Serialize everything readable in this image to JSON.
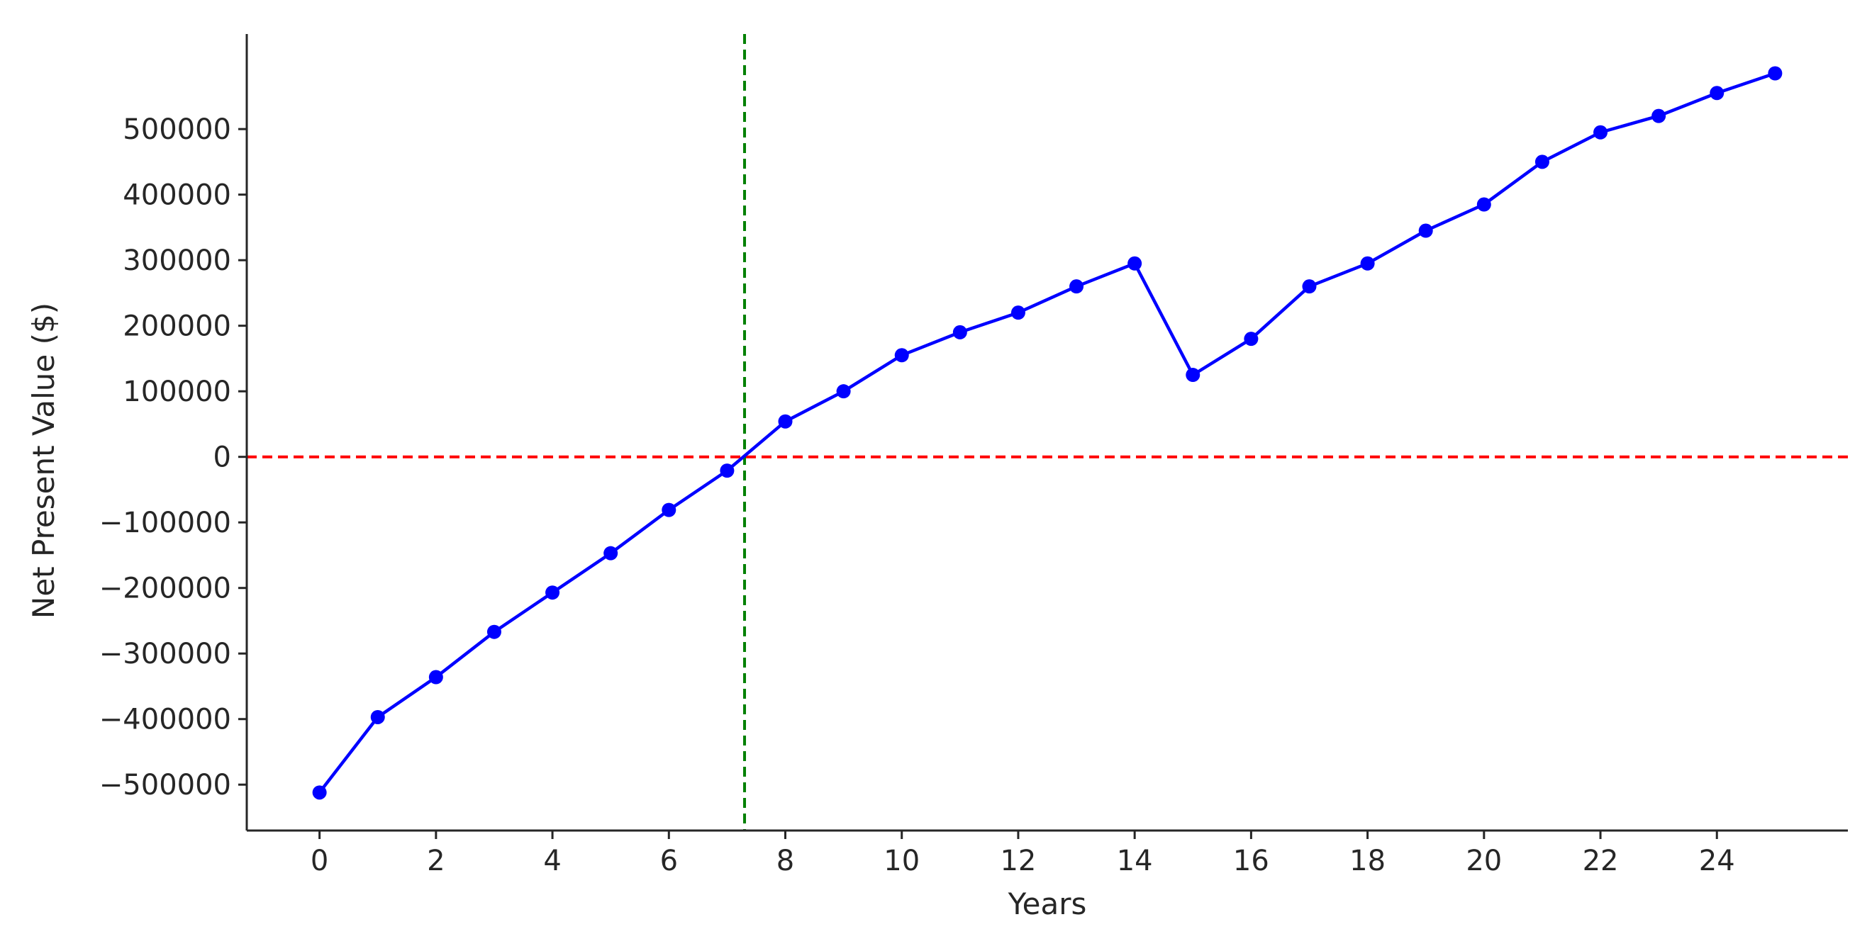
{
  "chart_data": {
    "type": "line",
    "title": "",
    "xlabel": "Years",
    "ylabel": "Net Present Value ($)",
    "xlim": [
      -1.25,
      26.25
    ],
    "ylim": [
      -570000,
      645000
    ],
    "x_ticks": [
      0,
      2,
      4,
      6,
      8,
      10,
      12,
      14,
      16,
      18,
      20,
      22,
      24
    ],
    "y_ticks": [
      -500000,
      -400000,
      -300000,
      -200000,
      -100000,
      0,
      100000,
      200000,
      300000,
      400000,
      500000
    ],
    "x_tick_labels": [
      "0",
      "2",
      "4",
      "6",
      "8",
      "10",
      "12",
      "14",
      "16",
      "18",
      "20",
      "22",
      "24"
    ],
    "y_tick_labels": [
      "−500000",
      "−400000",
      "−300000",
      "−200000",
      "−100000",
      "0",
      "100000",
      "200000",
      "300000",
      "400000",
      "500000"
    ],
    "grid": false,
    "legend": "none",
    "series": [
      {
        "x": [
          0,
          1,
          2,
          3,
          4,
          5,
          6,
          7,
          8,
          9,
          10,
          11,
          12,
          13,
          14,
          15,
          16,
          17,
          18,
          19,
          20,
          21,
          22,
          23,
          24,
          25
        ],
        "values": [
          -512000,
          -397000,
          -336000,
          -267000,
          -207000,
          -147000,
          -81000,
          -21000,
          54000,
          100000,
          155000,
          190000,
          220000,
          260000,
          295000,
          125000,
          180000,
          260000,
          295000,
          345000,
          385000,
          450000,
          495000,
          520000,
          555000,
          585000
        ],
        "color": "#0000ff",
        "marker": "circle"
      }
    ],
    "reference_lines": [
      {
        "orientation": "horizontal",
        "value": 0,
        "color": "#ff0000",
        "style": "dashed"
      },
      {
        "orientation": "vertical",
        "value": 7.3,
        "color": "#008000",
        "style": "dashed"
      }
    ]
  }
}
